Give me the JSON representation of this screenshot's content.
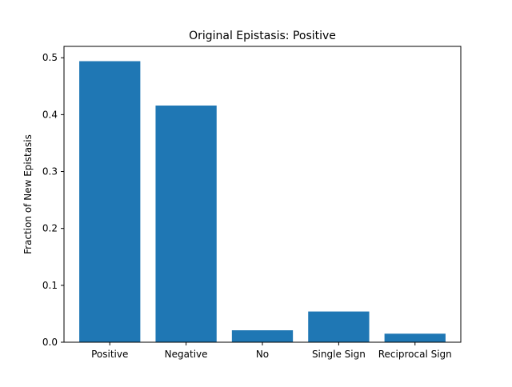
{
  "chart_data": {
    "type": "bar",
    "title": "Original Epistasis: Positive",
    "xlabel": "",
    "ylabel": "Fraction of New Epistasis",
    "categories": [
      "Positive",
      "Negative",
      "No",
      "Single Sign",
      "Reciprocal Sign"
    ],
    "values": [
      0.494,
      0.416,
      0.021,
      0.054,
      0.015
    ],
    "ylim": [
      0,
      0.52
    ],
    "yticks": [
      "0.0",
      "0.1",
      "0.2",
      "0.3",
      "0.4",
      "0.5"
    ],
    "grid": false,
    "legend": "none",
    "bar_color": "#1f77b4"
  }
}
